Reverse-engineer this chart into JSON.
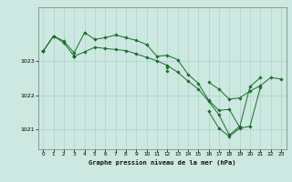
{
  "xlabel": "Graphe pression niveau de la mer (hPa)",
  "background_color": "#cce8e0",
  "grid_color": "#aad4cc",
  "line_color": "#1a6b2a",
  "ylim": [
    1020.4,
    1024.6
  ],
  "yticks": [
    1021,
    1022,
    1023
  ],
  "ytick_labels": [
    "1021",
    "1022",
    "1023"
  ],
  "x_ticks": [
    0,
    1,
    2,
    3,
    4,
    5,
    6,
    7,
    8,
    9,
    10,
    11,
    12,
    13,
    14,
    15,
    16,
    17,
    18,
    19,
    20,
    21,
    22,
    23
  ],
  "series": [
    [
      1023.3,
      1023.75,
      1023.6,
      1023.25,
      1023.85,
      1023.65,
      1023.7,
      1023.78,
      1023.7,
      1023.62,
      1023.5,
      1023.15,
      1023.18,
      1023.05,
      1022.62,
      1022.35,
      1021.85,
      1021.55,
      1021.58,
      1021.05,
      1022.25,
      1022.52,
      null,
      null
    ],
    [
      1023.3,
      1023.75,
      1023.55,
      1023.15,
      1023.28,
      1023.42,
      1023.38,
      1023.35,
      1023.32,
      1023.22,
      1023.12,
      1023.02,
      1022.88,
      1022.68,
      1022.42,
      1022.18,
      1021.82,
      1021.42,
      1020.82,
      1021.08,
      null,
      null,
      null,
      null
    ],
    [
      1023.3,
      null,
      null,
      1023.15,
      null,
      null,
      null,
      null,
      null,
      null,
      null,
      null,
      1022.82,
      null,
      null,
      null,
      1022.38,
      1022.18,
      1021.88,
      1021.92,
      1022.12,
      1022.28,
      1022.52,
      1022.48
    ],
    [
      1023.3,
      null,
      null,
      1023.15,
      null,
      null,
      null,
      null,
      null,
      null,
      null,
      null,
      1022.72,
      null,
      null,
      null,
      1021.52,
      1021.02,
      1020.78,
      1021.02,
      1021.08,
      1022.22,
      null,
      null
    ]
  ]
}
